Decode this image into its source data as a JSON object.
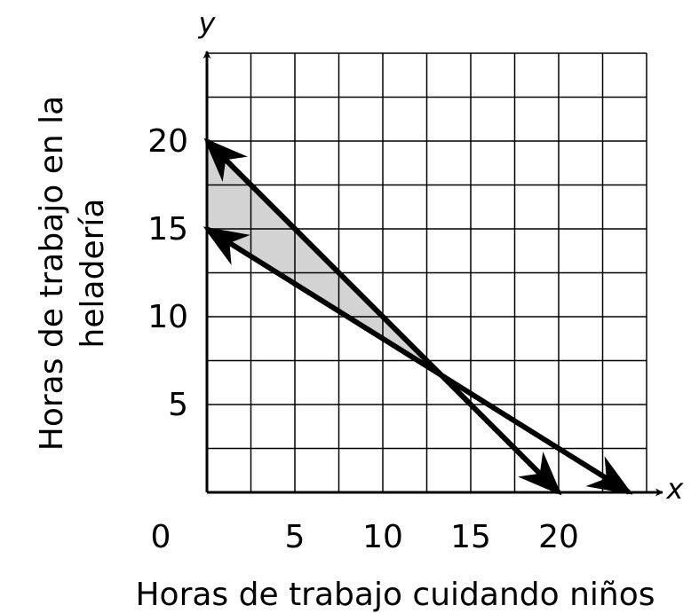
{
  "chart_data": {
    "type": "line",
    "x_name": "x",
    "y_name": "y",
    "xlabel": "Horas de trabajo cuidando niños",
    "ylabel_lines": [
      "Horas de trabajo en la",
      "heladería"
    ],
    "xlim": [
      0,
      25
    ],
    "ylim": [
      0,
      25
    ],
    "xticks": [
      0,
      5,
      10,
      15,
      20
    ],
    "yticks": [
      5,
      10,
      15,
      20
    ],
    "grid": true,
    "grid_step": 2.5,
    "shade_color": "#d3d3d3",
    "series": [
      {
        "x": [
          0,
          20
        ],
        "values": [
          20,
          0
        ],
        "color": "#000000"
      },
      {
        "x": [
          0,
          24
        ],
        "values": [
          15,
          0
        ],
        "color": "#000000"
      }
    ]
  }
}
